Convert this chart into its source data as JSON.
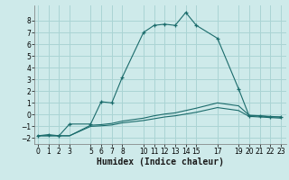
{
  "xlabel": "Humidex (Indice chaleur)",
  "background_color": "#ceeaea",
  "grid_color": "#aad4d4",
  "line_color": "#1a6b6b",
  "series": [
    {
      "x": [
        0,
        1,
        2,
        3,
        5,
        6,
        7,
        8,
        10,
        11,
        12,
        13,
        14,
        15,
        17,
        19,
        20,
        21,
        22,
        23
      ],
      "y": [
        -1.8,
        -1.7,
        -1.8,
        -0.8,
        -0.8,
        1.1,
        1.0,
        3.2,
        7.0,
        7.6,
        7.7,
        7.6,
        8.7,
        7.6,
        6.5,
        2.2,
        -0.1,
        -0.1,
        -0.2,
        -0.2
      ],
      "marker": "+"
    },
    {
      "x": [
        0,
        2,
        3,
        5,
        6,
        7,
        8,
        10,
        11,
        12,
        13,
        14,
        15,
        17,
        19,
        20,
        21,
        22,
        23
      ],
      "y": [
        -1.8,
        -1.8,
        -1.8,
        -0.9,
        -0.85,
        -0.75,
        -0.55,
        -0.3,
        -0.1,
        0.05,
        0.15,
        0.35,
        0.55,
        1.0,
        0.75,
        -0.05,
        -0.1,
        -0.15,
        -0.2
      ],
      "marker": null
    },
    {
      "x": [
        0,
        2,
        3,
        5,
        6,
        7,
        8,
        10,
        11,
        12,
        13,
        14,
        15,
        17,
        19,
        20,
        21,
        22,
        23
      ],
      "y": [
        -1.8,
        -1.8,
        -1.8,
        -1.0,
        -0.95,
        -0.88,
        -0.7,
        -0.5,
        -0.35,
        -0.2,
        -0.1,
        0.05,
        0.2,
        0.6,
        0.35,
        -0.15,
        -0.2,
        -0.25,
        -0.3
      ],
      "marker": null
    }
  ],
  "xlim": [
    -0.3,
    23.5
  ],
  "ylim": [
    -2.5,
    9.3
  ],
  "xticks": [
    0,
    1,
    2,
    3,
    5,
    6,
    7,
    8,
    10,
    11,
    12,
    13,
    14,
    15,
    17,
    19,
    20,
    21,
    22,
    23
  ],
  "yticks": [
    -2,
    -1,
    0,
    1,
    2,
    3,
    4,
    5,
    6,
    7,
    8
  ],
  "tick_fontsize": 5.5,
  "label_fontsize": 7.0
}
